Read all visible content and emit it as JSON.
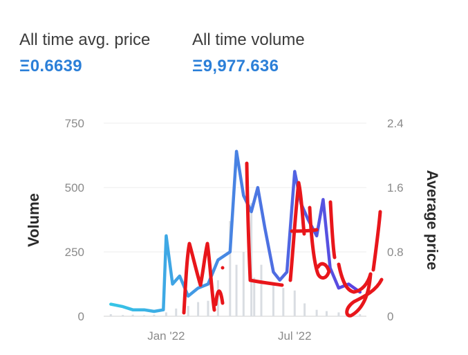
{
  "stats": {
    "avg_label": "All time avg. price",
    "avg_value": "Ξ0.6639",
    "vol_label": "All time volume",
    "vol_value": "Ξ9,977.636"
  },
  "colors": {
    "accent": "#2b7fd8",
    "volume_bars": "#d9dde2",
    "price_line_start": "#36c6e6",
    "price_line_end": "#5b3fe0",
    "scribble": "#e8161b"
  },
  "chart_data": {
    "type": "line",
    "title": "",
    "xlabel": "",
    "ylabel_left": "Volume",
    "ylabel_right": "Average price",
    "left_axis": {
      "min": 0,
      "max": 750,
      "ticks": [
        "0",
        "250",
        "500",
        "750"
      ]
    },
    "right_axis": {
      "min": 0,
      "max": 2.4,
      "ticks": [
        "0",
        "0.8",
        "1.6",
        "2.4"
      ]
    },
    "x_ticks": [
      "Jan '22",
      "Jul '22"
    ],
    "series": [
      {
        "name": "Volume",
        "axis": "left",
        "x": [
          "2021-10-15",
          "2021-11-01",
          "2021-11-15",
          "2021-12-01",
          "2021-12-15",
          "2022-01-01",
          "2022-01-15",
          "2022-02-01",
          "2022-02-15",
          "2022-03-01",
          "2022-03-15",
          "2022-04-01",
          "2022-04-10",
          "2022-04-20",
          "2022-05-01",
          "2022-05-05",
          "2022-05-15",
          "2022-06-01",
          "2022-06-15",
          "2022-07-01",
          "2022-07-15",
          "2022-08-01",
          "2022-08-15",
          "2022-09-01",
          "2022-09-15",
          "2022-10-01"
        ],
        "values": [
          8,
          5,
          6,
          4,
          6,
          15,
          30,
          40,
          55,
          60,
          140,
          370,
          200,
          250,
          440,
          150,
          200,
          120,
          110,
          100,
          50,
          25,
          20,
          15,
          10,
          8
        ]
      },
      {
        "name": "Average price",
        "axis": "right",
        "x": [
          "2021-10-15",
          "2021-11-01",
          "2021-11-15",
          "2021-12-01",
          "2021-12-15",
          "2021-12-28",
          "2022-01-01",
          "2022-01-10",
          "2022-01-20",
          "2022-02-01",
          "2022-02-15",
          "2022-03-01",
          "2022-03-15",
          "2022-04-01",
          "2022-04-10",
          "2022-04-20",
          "2022-05-01",
          "2022-05-10",
          "2022-05-20",
          "2022-06-01",
          "2022-06-10",
          "2022-06-20",
          "2022-07-01",
          "2022-07-10",
          "2022-07-20",
          "2022-08-01",
          "2022-08-10",
          "2022-08-20",
          "2022-09-01",
          "2022-09-15",
          "2022-10-01"
        ],
        "values": [
          0.15,
          0.12,
          0.08,
          0.08,
          0.06,
          0.08,
          1.0,
          0.4,
          0.5,
          0.25,
          0.35,
          0.4,
          0.7,
          0.8,
          2.05,
          1.5,
          1.3,
          1.6,
          1.1,
          0.55,
          0.45,
          0.55,
          1.8,
          1.4,
          1.2,
          1.0,
          1.45,
          0.6,
          0.35,
          0.4,
          0.3
        ]
      }
    ],
    "legend": "none",
    "grid": true
  }
}
